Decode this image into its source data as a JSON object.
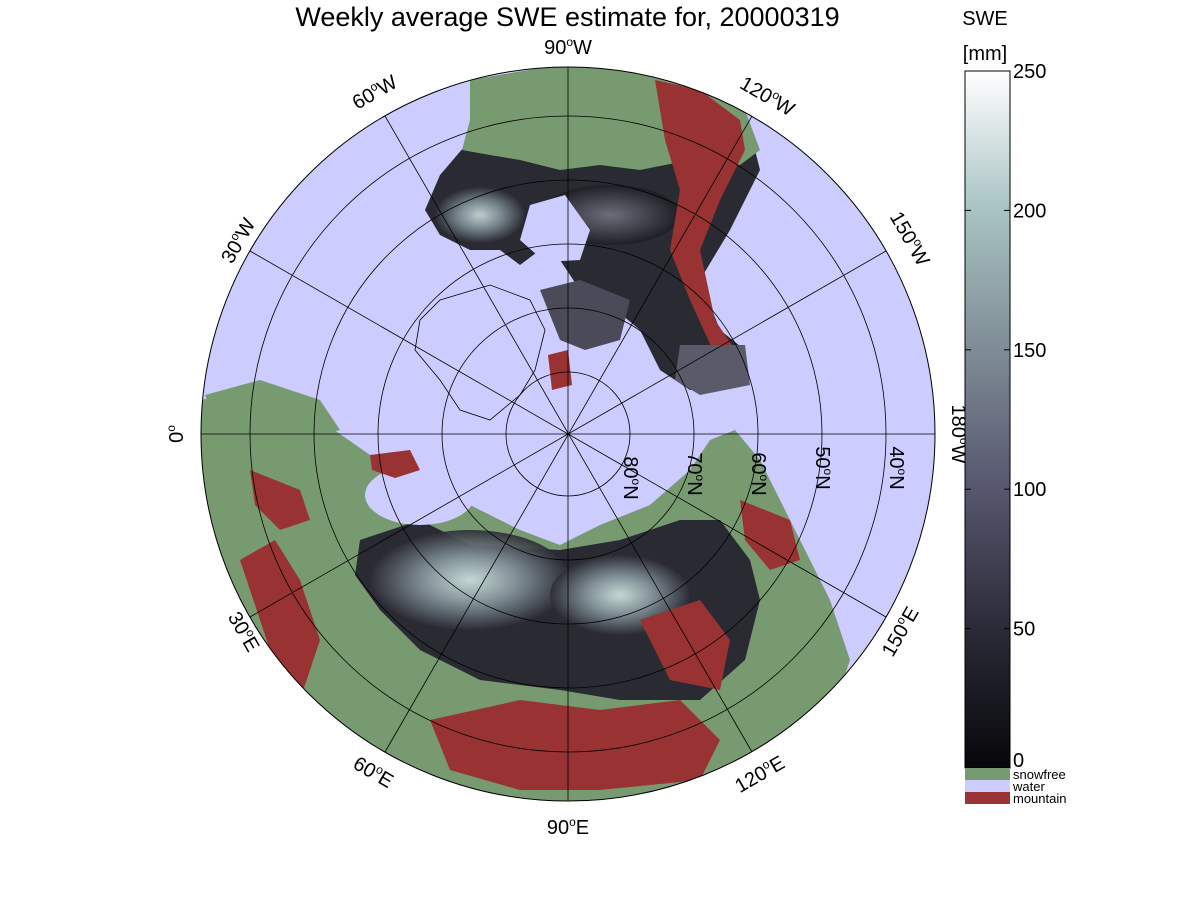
{
  "title": "Weekly average SWE estimate for, 20000319",
  "colorbar": {
    "title_line1": "SWE",
    "title_line2": "[mm]",
    "ticks": [
      "250",
      "200",
      "150",
      "100",
      "50",
      "0"
    ],
    "tick_values": [
      250,
      200,
      150,
      100,
      50,
      0
    ],
    "range": [
      0,
      250
    ],
    "gradient_colors": [
      "#07070a",
      "#2b2b38",
      "#56566e",
      "#7f8c95",
      "#a8c3c3",
      "#ffffff"
    ]
  },
  "categories": [
    {
      "label": "snowfree",
      "color": "#789a70"
    },
    {
      "label": "water",
      "color": "#ccccff"
    },
    {
      "label": "mountain",
      "color": "#993333"
    }
  ],
  "longitude_labels": [
    {
      "deg": "90",
      "dir": "W",
      "angle_deg": 90
    },
    {
      "deg": "60",
      "dir": "W",
      "angle_deg": 60
    },
    {
      "deg": "30",
      "dir": "W",
      "angle_deg": 30
    },
    {
      "deg": "0",
      "dir": "",
      "angle_deg": 0
    },
    {
      "deg": "120",
      "dir": "W",
      "angle_deg": 120
    },
    {
      "deg": "150",
      "dir": "W",
      "angle_deg": 150
    },
    {
      "deg": "180",
      "dir": "W",
      "angle_deg": 180
    },
    {
      "deg": "30",
      "dir": "E",
      "angle_deg": -30
    },
    {
      "deg": "60",
      "dir": "E",
      "angle_deg": -60
    },
    {
      "deg": "90",
      "dir": "E",
      "angle_deg": -90
    },
    {
      "deg": "120",
      "dir": "E",
      "angle_deg": -120
    },
    {
      "deg": "150",
      "dir": "E",
      "angle_deg": -150
    }
  ],
  "latitude_labels": [
    {
      "deg": "80",
      "dir": "N",
      "lat": 80
    },
    {
      "deg": "70",
      "dir": "N",
      "lat": 70
    },
    {
      "deg": "60",
      "dir": "N",
      "lat": 60
    },
    {
      "deg": "50",
      "dir": "N",
      "lat": 50
    },
    {
      "deg": "40",
      "dir": "N",
      "lat": 40
    }
  ]
}
